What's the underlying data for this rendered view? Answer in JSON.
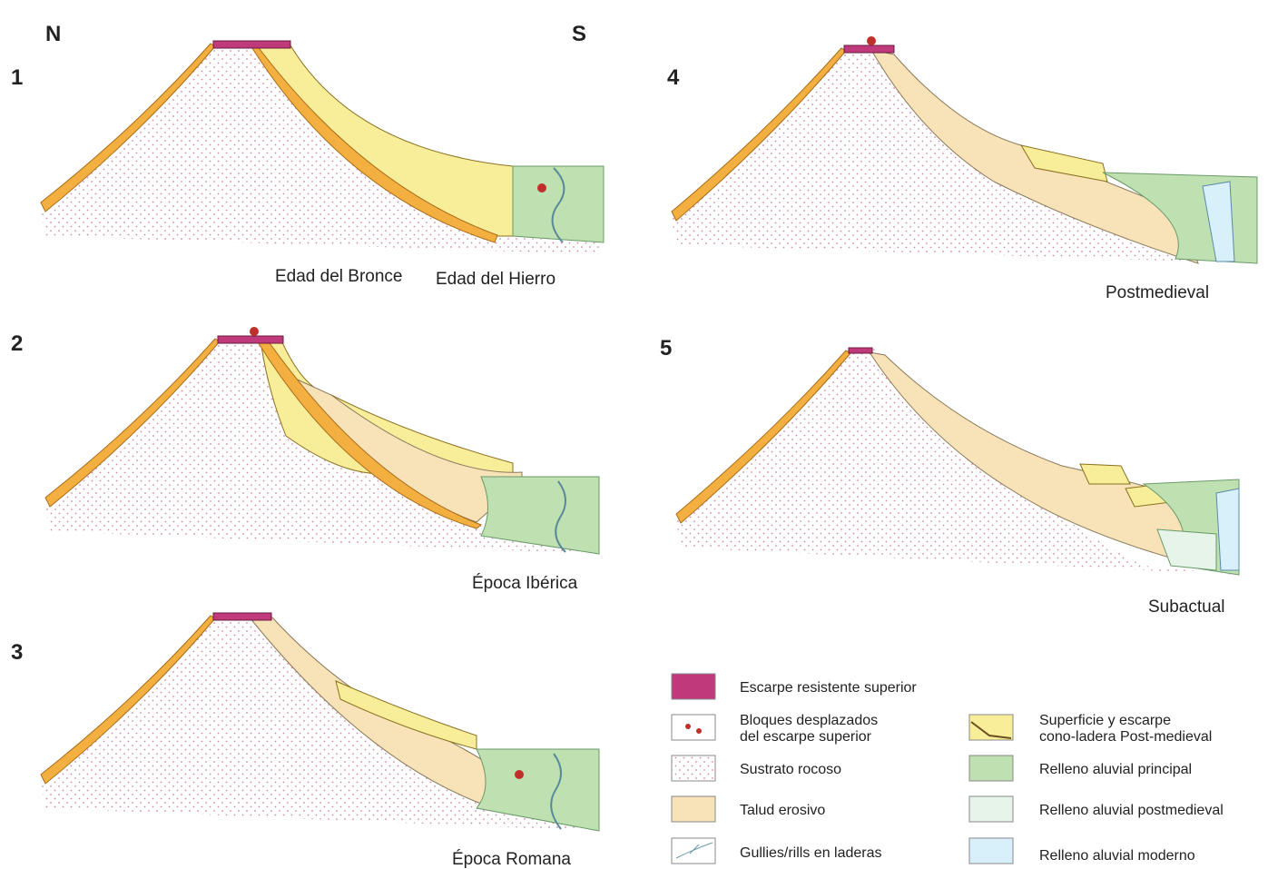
{
  "compass": {
    "north": "N",
    "south": "S"
  },
  "panels": [
    {
      "number": "1",
      "captions": [
        "Edad del Bronce",
        "Edad del Hierro"
      ]
    },
    {
      "number": "2",
      "captions": [
        "Época Ibérica"
      ]
    },
    {
      "number": "3",
      "captions": [
        "Época Romana"
      ]
    },
    {
      "number": "4",
      "captions": [
        "Postmedieval"
      ]
    },
    {
      "number": "5",
      "captions": [
        "Subactual"
      ]
    }
  ],
  "legend": [
    {
      "lines": [
        "Escarpe resistente superior"
      ]
    },
    {
      "lines": [
        "Bloques desplazados",
        "del escarpe superior"
      ]
    },
    {
      "lines": [
        "Sustrato rocoso"
      ]
    },
    {
      "lines": [
        "Talud erosivo"
      ]
    },
    {
      "lines": [
        "Gullies/rills en laderas"
      ]
    },
    {
      "lines": [
        "Superficie y escarpe",
        "cono-ladera Post-medieval"
      ]
    },
    {
      "lines": [
        "Relleno aluvial principal"
      ]
    },
    {
      "lines": [
        "Relleno aluvial postmedieval"
      ]
    },
    {
      "lines": [
        "Relleno aluvial moderno"
      ]
    }
  ]
}
